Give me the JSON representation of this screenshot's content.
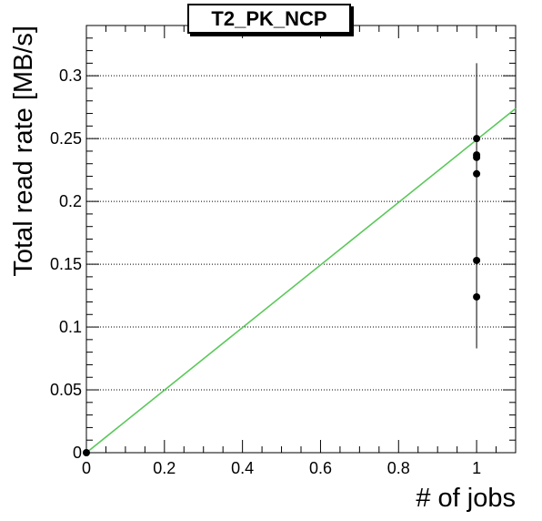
{
  "chart_data": {
    "type": "scatter",
    "title": "T2_PK_NCP",
    "xlabel": "# of jobs",
    "ylabel": "Total read rate [MB/s]",
    "xlim": [
      0,
      1.1
    ],
    "ylim": [
      0,
      0.34
    ],
    "x_ticks": [
      "0",
      "0.2",
      "0.4",
      "0.6",
      "0.8",
      "1"
    ],
    "x_tick_values": [
      0,
      0.2,
      0.4,
      0.6,
      0.8,
      1.0
    ],
    "y_ticks": [
      "0",
      "0.05",
      "0.1",
      "0.15",
      "0.2",
      "0.25",
      "0.3"
    ],
    "y_tick_values": [
      0,
      0.05,
      0.1,
      0.15,
      0.2,
      0.25,
      0.3
    ],
    "grid_y": true,
    "points": [
      {
        "x": 0,
        "y": 0
      },
      {
        "x": 1,
        "y": 0.25
      },
      {
        "x": 1,
        "y": 0.237
      },
      {
        "x": 1,
        "y": 0.235
      },
      {
        "x": 1,
        "y": 0.222
      },
      {
        "x": 1,
        "y": 0.153
      },
      {
        "x": 1,
        "y": 0.124
      }
    ],
    "error_bar": {
      "x": 1,
      "y_low": 0.083,
      "y_high": 0.31
    },
    "fit_line": {
      "slope": 0.249,
      "intercept": 0,
      "color": "#5ac85a"
    },
    "colors": {
      "points": "#000000",
      "fit": "#5ac85a",
      "grid": "#000000"
    }
  }
}
